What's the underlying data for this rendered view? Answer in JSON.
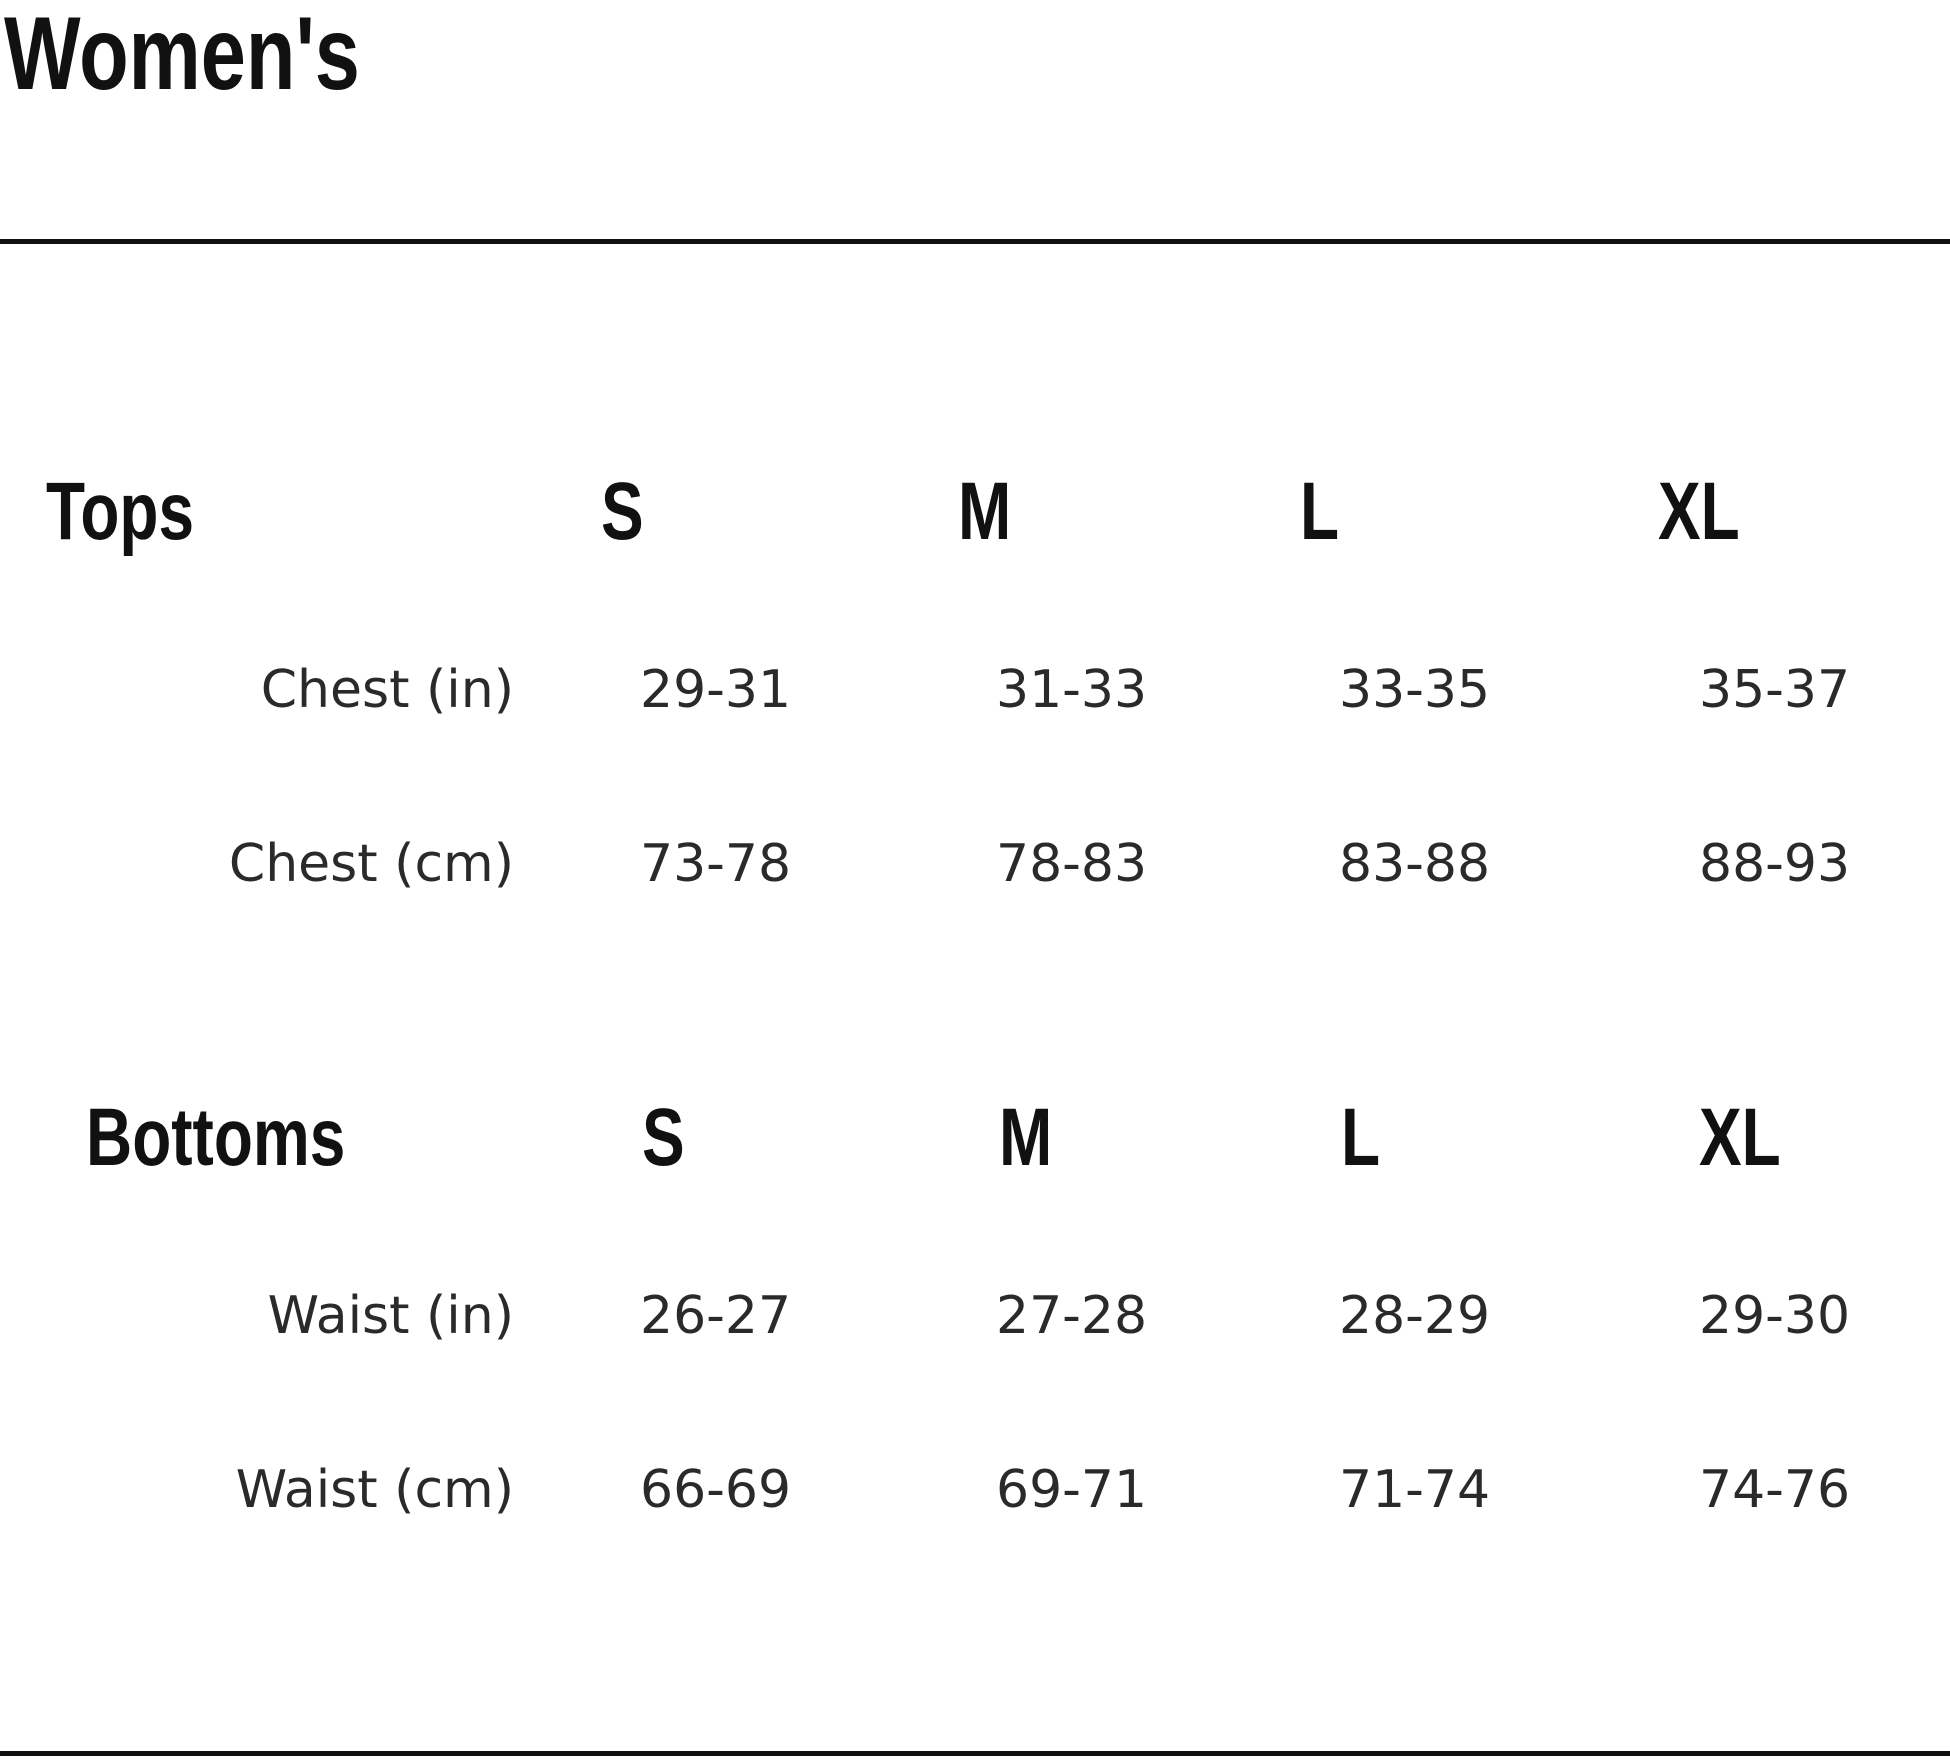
{
  "title": "Women's",
  "sections": [
    {
      "heading": "Tops",
      "sizes": [
        "S",
        "M",
        "L",
        "XL"
      ],
      "rows": [
        {
          "label": "Chest (in)",
          "values": [
            "29-31",
            "31-33",
            "33-35",
            "35-37"
          ]
        },
        {
          "label": "Chest (cm)",
          "values": [
            "73-78",
            "78-83",
            "83-88",
            "88-93"
          ]
        }
      ]
    },
    {
      "heading": "Bottoms",
      "sizes": [
        "S",
        "M",
        "L",
        "XL"
      ],
      "rows": [
        {
          "label": "Waist (in)",
          "values": [
            "26-27",
            "27-28",
            "28-29",
            "29-30"
          ]
        },
        {
          "label": "Waist (cm)",
          "values": [
            "66-69",
            "69-71",
            "71-74",
            "74-76"
          ]
        }
      ]
    }
  ]
}
